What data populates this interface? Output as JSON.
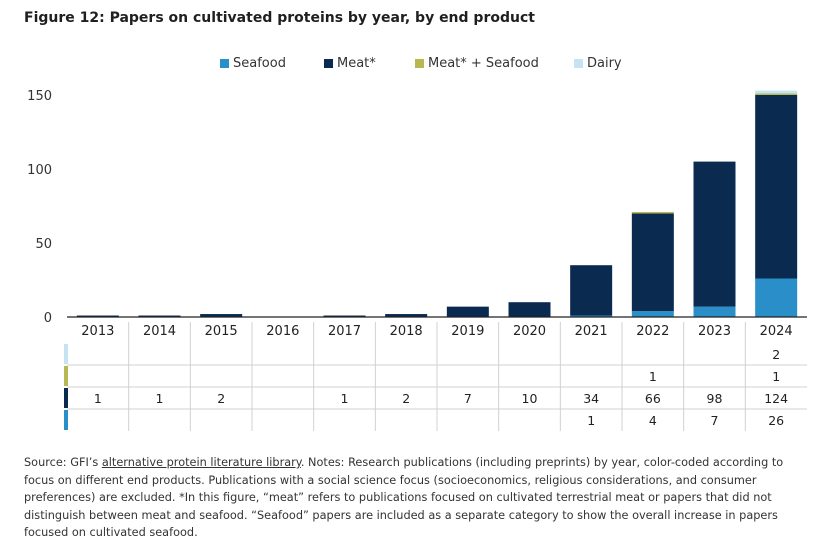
{
  "title": "Figure 12: Papers on cultivated proteins by year, by end product",
  "legend": [
    {
      "label": "Seafood",
      "color": "#2A8FC8"
    },
    {
      "label": "Meat*",
      "color": "#0A2B4F"
    },
    {
      "label": "Meat* + Seafood",
      "color": "#B8B853"
    },
    {
      "label": "Dairy",
      "color": "#C6E3F3"
    }
  ],
  "chart_data": {
    "type": "bar",
    "stacked": true,
    "categories": [
      "2013",
      "2014",
      "2015",
      "2016",
      "2017",
      "2018",
      "2019",
      "2020",
      "2021",
      "2022",
      "2023",
      "2024"
    ],
    "series": [
      {
        "name": "Seafood",
        "color": "#2A8FC8",
        "values": [
          0,
          0,
          0,
          0,
          0,
          0,
          0,
          0,
          1,
          4,
          7,
          26
        ]
      },
      {
        "name": "Meat*",
        "color": "#0A2B4F",
        "values": [
          1,
          1,
          2,
          0,
          1,
          2,
          7,
          10,
          34,
          66,
          98,
          124
        ]
      },
      {
        "name": "Meat* + Seafood",
        "color": "#B8B853",
        "values": [
          0,
          0,
          0,
          0,
          0,
          0,
          0,
          0,
          0,
          1,
          0,
          1
        ]
      },
      {
        "name": "Dairy",
        "color": "#C6E3F3",
        "values": [
          0,
          0,
          0,
          0,
          0,
          0,
          0,
          0,
          0,
          0,
          0,
          2
        ]
      }
    ],
    "ylim": [
      0,
      160
    ],
    "yticks": [
      0,
      50,
      100,
      150
    ],
    "legend_position": "top",
    "grid": false,
    "data_table": {
      "row_order": [
        "Dairy",
        "Meat* + Seafood",
        "Meat*",
        "Seafood"
      ],
      "rows": [
        [
          "",
          "",
          "",
          "",
          "",
          "",
          "",
          "",
          "",
          "",
          "",
          "2"
        ],
        [
          "",
          "",
          "",
          "",
          "",
          "",
          "",
          "",
          "",
          "1",
          "",
          "1"
        ],
        [
          "1",
          "1",
          "2",
          "",
          "1",
          "2",
          "7",
          "10",
          "34",
          "66",
          "98",
          "124"
        ],
        [
          "",
          "",
          "",
          "",
          "",
          "",
          "",
          "",
          "1",
          "4",
          "7",
          "26"
        ]
      ]
    }
  },
  "footnote": {
    "prefix": "Source: GFI’s ",
    "link": "alternative protein literature library",
    "suffix": ". Notes: Research publications (including preprints) by year, color-coded according to focus on different end products. Publications with a social science focus (socioeconomics, religious considerations, and consumer preferences) are excluded. *In this figure, “meat” refers to publications focused on cultivated terrestrial meat or papers that did not distinguish between meat and seafood. “Seafood” papers are included as a separate category to show the overall increase in papers focused on cultivated seafood."
  }
}
